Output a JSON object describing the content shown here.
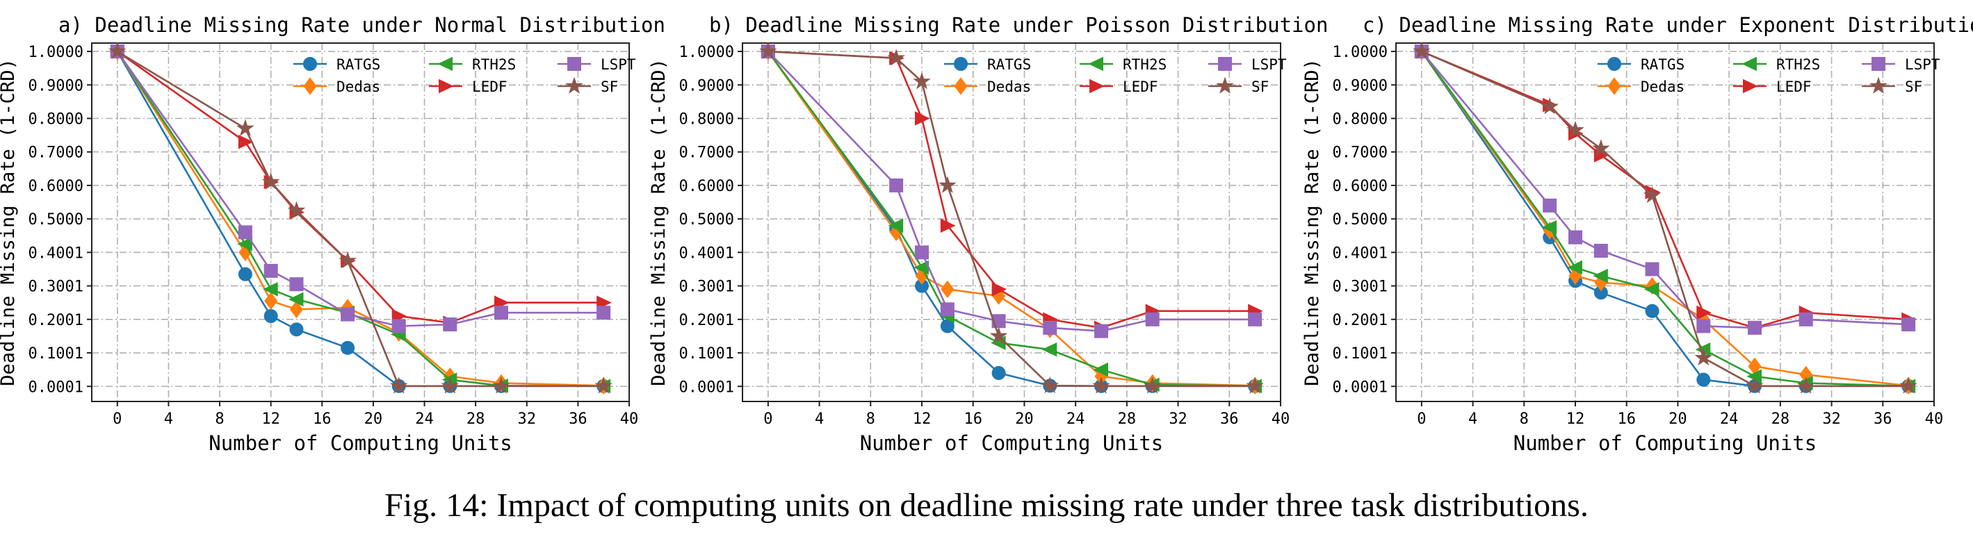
{
  "caption": "Fig. 14: Impact of computing units on deadline missing rate under three task distributions.",
  "style": {
    "series_colors": {
      "RATGS": "#1f77b4",
      "Dedas": "#ff7f0e",
      "RTH2S": "#2ca02c",
      "LEDF": "#d62728",
      "LSPT": "#9467bd",
      "SF": "#8c564b"
    },
    "series_markers": {
      "RATGS": "circle",
      "Dedas": "diamond",
      "RTH2S": "triangle-left",
      "LEDF": "triangle-right",
      "LSPT": "square",
      "SF": "star"
    },
    "grid": "dash-dot",
    "legend_position": "top-right",
    "legend_columns": 3
  },
  "chart_data": [
    {
      "type": "line",
      "title": "a) Deadline Missing Rate under Normal Distribution",
      "xlabel": "Number of Computing Units",
      "ylabel": "Deadline Missing Rate (1-CRD)",
      "xlim": [
        -2,
        40
      ],
      "ylim": [
        -0.045,
        1.025
      ],
      "xticks": [
        0,
        4,
        8,
        12,
        16,
        20,
        24,
        28,
        32,
        36,
        40
      ],
      "yticks": [
        0.0001,
        0.1001,
        0.2001,
        0.3001,
        0.4001,
        0.5,
        0.6,
        0.7,
        0.8,
        0.9,
        1.0
      ],
      "ytick_labels": [
        "0.0001",
        "0.1001",
        "0.2001",
        "0.3001",
        "0.4001",
        "0.5000",
        "0.6000",
        "0.7000",
        "0.8000",
        "0.9000",
        "1.0000"
      ],
      "x": [
        0,
        10,
        12,
        14,
        18,
        22,
        26,
        30,
        38
      ],
      "series": [
        {
          "name": "RATGS",
          "values": [
            1.0,
            0.335,
            0.21,
            0.17,
            0.115,
            0.001,
            0.001,
            0.001,
            0.001
          ]
        },
        {
          "name": "Dedas",
          "values": [
            1.0,
            0.4,
            0.255,
            0.23,
            0.235,
            0.16,
            0.03,
            0.01,
            0.002
          ]
        },
        {
          "name": "RTH2S",
          "values": [
            1.0,
            0.425,
            0.29,
            0.26,
            0.22,
            0.155,
            0.02,
            0.002,
            0.001
          ]
        },
        {
          "name": "LEDF",
          "values": [
            1.0,
            0.73,
            0.61,
            0.52,
            0.375,
            0.21,
            0.19,
            0.25,
            0.25
          ]
        },
        {
          "name": "LSPT",
          "values": [
            1.0,
            0.46,
            0.345,
            0.305,
            0.215,
            0.18,
            0.185,
            0.22,
            0.22
          ]
        },
        {
          "name": "SF",
          "values": [
            1.0,
            0.77,
            0.61,
            0.525,
            0.375,
            0.001,
            0.001,
            0.001,
            0.001
          ]
        }
      ]
    },
    {
      "type": "line",
      "title": "b) Deadline Missing Rate under Poisson Distribution",
      "xlabel": "Number of Computing Units",
      "ylabel": "Deadline Missing Rate (1-CRD)",
      "xlim": [
        -2,
        40
      ],
      "ylim": [
        -0.045,
        1.025
      ],
      "xticks": [
        0,
        4,
        8,
        12,
        16,
        20,
        24,
        28,
        32,
        36,
        40
      ],
      "yticks": [
        0.0001,
        0.1001,
        0.2001,
        0.3001,
        0.4001,
        0.5,
        0.6,
        0.7,
        0.8,
        0.9,
        1.0
      ],
      "ytick_labels": [
        "0.0001",
        "0.1001",
        "0.2001",
        "0.3001",
        "0.4001",
        "0.5000",
        "0.6000",
        "0.7000",
        "0.8000",
        "0.9000",
        "1.0000"
      ],
      "x": [
        0,
        10,
        12,
        14,
        18,
        22,
        26,
        30,
        38
      ],
      "series": [
        {
          "name": "RATGS",
          "values": [
            1.0,
            0.47,
            0.3,
            0.18,
            0.04,
            0.002,
            0.001,
            0.001,
            0.001
          ]
        },
        {
          "name": "Dedas",
          "values": [
            1.0,
            0.46,
            0.33,
            0.29,
            0.27,
            0.17,
            0.03,
            0.01,
            0.002
          ]
        },
        {
          "name": "RTH2S",
          "values": [
            1.0,
            0.48,
            0.355,
            0.21,
            0.13,
            0.11,
            0.05,
            0.005,
            0.001
          ]
        },
        {
          "name": "LEDF",
          "values": [
            1.0,
            0.98,
            0.8,
            0.48,
            0.29,
            0.2,
            0.175,
            0.225,
            0.225
          ]
        },
        {
          "name": "LSPT",
          "values": [
            1.0,
            0.6,
            0.4,
            0.23,
            0.195,
            0.175,
            0.165,
            0.2,
            0.2
          ]
        },
        {
          "name": "SF",
          "values": [
            1.0,
            0.98,
            0.91,
            0.6,
            0.15,
            0.002,
            0.001,
            0.001,
            0.001
          ]
        }
      ]
    },
    {
      "type": "line",
      "title": "c) Deadline Missing Rate under Exponent Distribution",
      "xlabel": "Number of Computing Units",
      "ylabel": "Deadline Missing Rate (1-CRD)",
      "xlim": [
        -2,
        40
      ],
      "ylim": [
        -0.045,
        1.025
      ],
      "xticks": [
        0,
        4,
        8,
        12,
        16,
        20,
        24,
        28,
        32,
        36,
        40
      ],
      "yticks": [
        0.0001,
        0.1001,
        0.2001,
        0.3001,
        0.4001,
        0.5,
        0.6,
        0.7,
        0.8,
        0.9,
        1.0
      ],
      "ytick_labels": [
        "0.0001",
        "0.1001",
        "0.2001",
        "0.3001",
        "0.4001",
        "0.5000",
        "0.6000",
        "0.7000",
        "0.8000",
        "0.9000",
        "1.0000"
      ],
      "x": [
        0,
        10,
        12,
        14,
        18,
        22,
        26,
        30,
        38
      ],
      "series": [
        {
          "name": "RATGS",
          "values": [
            1.0,
            0.445,
            0.315,
            0.28,
            0.225,
            0.02,
            0.001,
            0.001,
            0.001
          ]
        },
        {
          "name": "Dedas",
          "values": [
            1.0,
            0.465,
            0.33,
            0.31,
            0.3,
            0.2,
            0.06,
            0.035,
            0.002
          ]
        },
        {
          "name": "RTH2S",
          "values": [
            1.0,
            0.475,
            0.355,
            0.33,
            0.29,
            0.11,
            0.03,
            0.01,
            0.001
          ]
        },
        {
          "name": "LEDF",
          "values": [
            1.0,
            0.84,
            0.755,
            0.69,
            0.58,
            0.22,
            0.175,
            0.22,
            0.2
          ]
        },
        {
          "name": "LSPT",
          "values": [
            1.0,
            0.54,
            0.445,
            0.405,
            0.35,
            0.18,
            0.175,
            0.2,
            0.185
          ]
        },
        {
          "name": "SF",
          "values": [
            1.0,
            0.835,
            0.765,
            0.71,
            0.57,
            0.085,
            0.001,
            0.001,
            0.001
          ]
        }
      ]
    }
  ]
}
